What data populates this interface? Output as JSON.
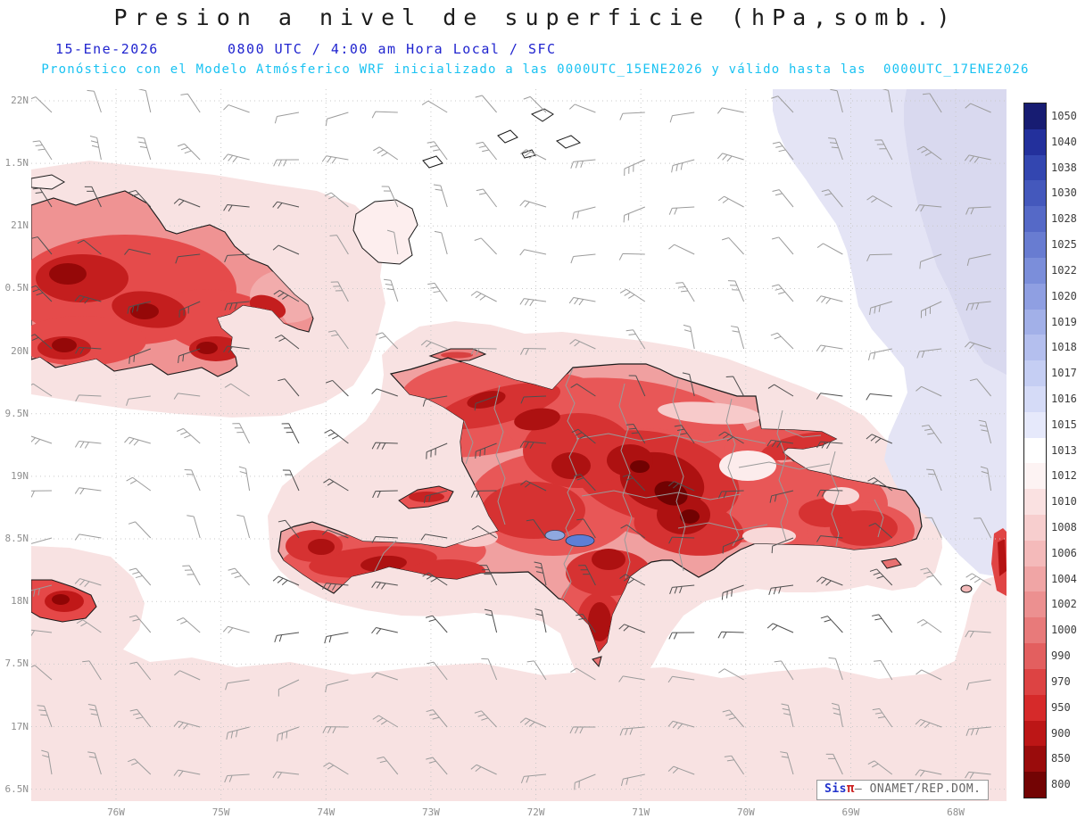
{
  "header": {
    "title": "Presion a nivel de superficie (hPa,somb.)",
    "date_label": "15-Ene-2026",
    "time_label": "0800 UTC / 4:00 am Hora Local / SFC",
    "forecast_label": "Pronóstico con el Modelo Atmósferico WRF inicializado a las 0000UTC_15ENE2026 y válido hasta las  0000UTC_17ENE2026"
  },
  "map": {
    "lat_labels": [
      "22N",
      "1.5N",
      "21N",
      "0.5N",
      "20N",
      "9.5N",
      "19N",
      "8.5N",
      "18N",
      "7.5N",
      "17N",
      "6.5N"
    ],
    "lon_labels": [
      "76W",
      "75W",
      "74W",
      "73W",
      "72W",
      "71W",
      "70W",
      "69W",
      "68W"
    ]
  },
  "colorbar": {
    "units": "hPa",
    "entries": [
      {
        "value": "1050",
        "color": "#171c72"
      },
      {
        "value": "1040",
        "color": "#23309c"
      },
      {
        "value": "1038",
        "color": "#3346b0"
      },
      {
        "value": "1030",
        "color": "#4458bc"
      },
      {
        "value": "1028",
        "color": "#5569c7"
      },
      {
        "value": "1025",
        "color": "#687cd1"
      },
      {
        "value": "1022",
        "color": "#7b8eda"
      },
      {
        "value": "1020",
        "color": "#8f9fe2"
      },
      {
        "value": "1019",
        "color": "#a2b0e8"
      },
      {
        "value": "1018",
        "color": "#b4bfee"
      },
      {
        "value": "1017",
        "color": "#c5cef3"
      },
      {
        "value": "1016",
        "color": "#d5dbf7"
      },
      {
        "value": "1015",
        "color": "#e6e9fb"
      },
      {
        "value": "1013",
        "color": "#ffffff"
      },
      {
        "value": "1012",
        "color": "#fdf3f3"
      },
      {
        "value": "1010",
        "color": "#fae1e1"
      },
      {
        "value": "1008",
        "color": "#f7cece"
      },
      {
        "value": "1006",
        "color": "#f4baba"
      },
      {
        "value": "1004",
        "color": "#f0a5a5"
      },
      {
        "value": "1002",
        "color": "#ec9090"
      },
      {
        "value": "1000",
        "color": "#e87a7a"
      },
      {
        "value": "990",
        "color": "#e35f5f"
      },
      {
        "value": "970",
        "color": "#dd4343"
      },
      {
        "value": "950",
        "color": "#d62a2a"
      },
      {
        "value": "900",
        "color": "#bc1616"
      },
      {
        "value": "850",
        "color": "#9a0c0c"
      },
      {
        "value": "800",
        "color": "#730404"
      }
    ]
  },
  "watermark": {
    "brand": "Sis",
    "pi": "π",
    "rest": "– ONAMET/REP.DOM."
  }
}
